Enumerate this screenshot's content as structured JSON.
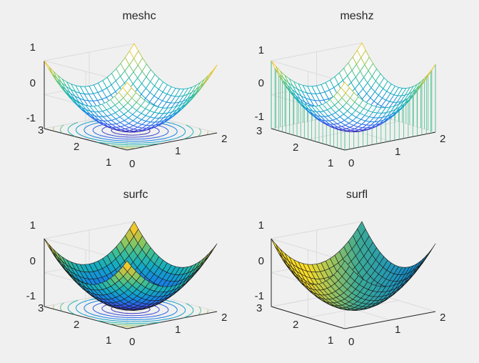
{
  "figure": {
    "background": "#f0f0f0",
    "axis_color": "#262626",
    "grid_color": "#dcdcdc"
  },
  "chart_data": [
    {
      "type": "meshc",
      "title": "meshc",
      "function": "z = (x-1)^2 + (y-2)^2 - 1",
      "x": [
        0,
        2
      ],
      "y": [
        1,
        3
      ],
      "zlim": [
        -1,
        1
      ],
      "xticks": [
        "0",
        "1",
        "2"
      ],
      "yticks": [
        "1",
        "2",
        "3"
      ],
      "zticks": [
        "-1",
        "0",
        "1"
      ],
      "contour_levels": [
        -0.9,
        -0.78,
        -0.62,
        -0.42,
        -0.2,
        0.05,
        0.32,
        0.6,
        0.9
      ],
      "grid": true
    },
    {
      "type": "meshz",
      "title": "meshz",
      "function": "z = (x-1)^2 + (y-2)^2 - 1",
      "x": [
        0,
        2
      ],
      "y": [
        1,
        3
      ],
      "zlim": [
        -1,
        1
      ],
      "xticks": [
        "0",
        "1",
        "2"
      ],
      "yticks": [
        "1",
        "2",
        "3"
      ],
      "zticks": [
        "-1",
        "0",
        "1"
      ],
      "grid": true
    },
    {
      "type": "surfc",
      "title": "surfc",
      "function": "z = (x-1)^2 + (y-2)^2 - 1",
      "x": [
        0,
        2
      ],
      "y": [
        1,
        3
      ],
      "zlim": [
        -1,
        1
      ],
      "xticks": [
        "0",
        "1",
        "2"
      ],
      "yticks": [
        "1",
        "2",
        "3"
      ],
      "zticks": [
        "-1",
        "0",
        "1"
      ],
      "contour_levels": [
        -0.9,
        -0.78,
        -0.62,
        -0.42,
        -0.2,
        0.05,
        0.32,
        0.6,
        0.9
      ],
      "grid": true
    },
    {
      "type": "surfl",
      "title": "surfl",
      "function": "z = (x-1)^2 + (y-2)^2 - 1",
      "x": [
        0,
        2
      ],
      "y": [
        1,
        3
      ],
      "zlim": [
        -1,
        1
      ],
      "xticks": [
        "0",
        "1",
        "2"
      ],
      "yticks": [
        "1",
        "2",
        "3"
      ],
      "zticks": [
        "-1",
        "0",
        "1"
      ],
      "grid": true
    }
  ]
}
